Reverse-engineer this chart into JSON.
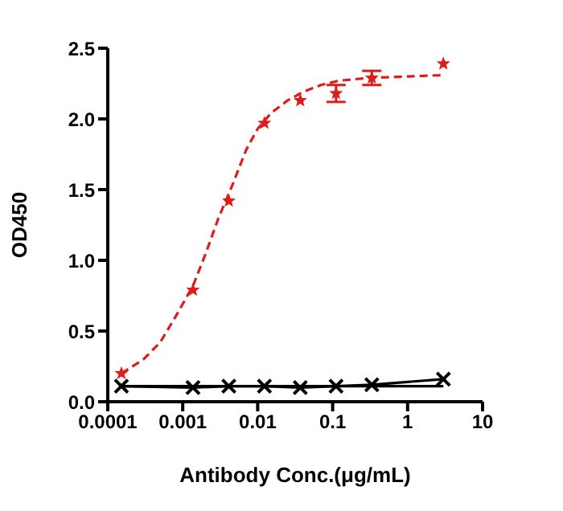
{
  "chart_data": {
    "type": "scatter",
    "xlabel": "Antibody Conc.(μg/mL)",
    "ylabel": "OD450",
    "log": "x",
    "xlim": [
      0.0001,
      10
    ],
    "xticks": [
      0.0001,
      0.001,
      0.01,
      0.1,
      1,
      10
    ],
    "ylim": [
      0,
      2.5
    ],
    "yticks": [
      {
        "value": 0,
        "label": "0.0"
      },
      0.5,
      {
        "value": 1,
        "label": "1.0"
      },
      1.5,
      {
        "value": 2,
        "label": "2.0"
      },
      2.5
    ],
    "series": [
      {
        "color": "#dd1c1c",
        "marker": "star",
        "x": [
          0.000152,
          0.00137,
          0.00412,
          0.0123,
          0.037,
          0.111,
          0.333,
          3
        ],
        "values": [
          0.2,
          0.79,
          1.42,
          1.97,
          2.13,
          2.18,
          2.29,
          2.39
        ],
        "errors": [
          null,
          null,
          null,
          null,
          null,
          0.06,
          0.05,
          null
        ]
      },
      {
        "type": "line",
        "color": "#dd1c1c",
        "marker": "none",
        "line_style": "dashed",
        "x": [
          0.000152,
          0.0003,
          0.0005,
          0.0008,
          0.00137,
          0.002,
          0.003,
          0.0045,
          0.007,
          0.01,
          0.015,
          0.025,
          0.04,
          0.07,
          0.12,
          0.3,
          1,
          3
        ],
        "values": [
          0.2,
          0.3,
          0.42,
          0.6,
          0.82,
          1.04,
          1.3,
          1.52,
          1.78,
          1.93,
          2.04,
          2.13,
          2.19,
          2.24,
          2.27,
          2.29,
          2.3,
          2.31
        ]
      },
      {
        "type": "line",
        "color": "#000000",
        "marker": "cross",
        "line_style": "solid",
        "x": [
          0.000152,
          0.00137,
          0.00412,
          0.0123,
          0.037,
          0.111,
          0.333,
          3
        ],
        "values": [
          0.11,
          0.1,
          0.11,
          0.11,
          0.1,
          0.11,
          0.12,
          0.16
        ]
      },
      {
        "type": "line",
        "color": "#000000",
        "marker": "none",
        "line_style": "solid",
        "x": [
          0.000152,
          3
        ],
        "values": [
          0.11,
          0.11
        ]
      }
    ]
  }
}
